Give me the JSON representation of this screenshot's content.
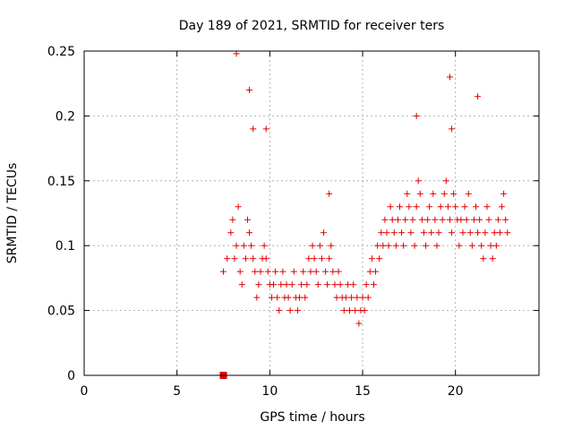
{
  "chart_data": {
    "type": "scatter",
    "title": "Day 189 of 2021, SRMTID for receiver ters",
    "xlabel": "GPS time / hours",
    "ylabel": "SRMTID / TECUs",
    "xlim": [
      0,
      24.5
    ],
    "ylim": [
      0,
      0.25
    ],
    "x_ticks": [
      "0",
      "5",
      "10",
      "15",
      "20"
    ],
    "x_tick_values": [
      0,
      5,
      10,
      15,
      20
    ],
    "y_ticks": [
      "0",
      "0.05",
      "0.1",
      "0.15",
      "0.2",
      "0.25"
    ],
    "y_tick_values": [
      0,
      0.05,
      0.1,
      0.15,
      0.2,
      0.25
    ],
    "grid": true,
    "marker": "plus",
    "color": "#e00000",
    "special_point": {
      "x": 7.5,
      "y": 0.0,
      "marker": "square"
    },
    "series": [
      {
        "x": [
          7.5,
          7.7,
          7.9,
          8.0,
          8.1,
          8.2,
          8.3,
          8.4,
          8.5,
          8.6,
          8.7,
          8.8,
          8.9,
          9.0,
          9.1,
          9.2,
          9.3,
          9.4,
          9.5,
          9.6,
          9.7,
          9.8,
          9.9,
          10.0,
          10.1,
          10.2,
          10.3,
          10.4,
          10.5,
          10.6,
          10.7,
          10.8,
          10.9,
          11.0,
          11.1,
          11.2,
          11.3,
          11.4,
          11.5,
          11.6,
          11.7,
          11.8,
          11.9,
          12.0,
          12.1,
          12.2,
          12.3,
          12.4,
          12.5,
          12.6,
          12.7,
          12.8,
          12.9,
          13.0,
          13.1,
          13.2,
          13.3,
          13.4,
          13.5,
          13.6,
          13.7,
          13.8,
          13.9,
          14.0,
          14.1,
          14.2,
          14.3,
          14.4,
          14.5,
          14.6,
          14.7,
          14.8,
          14.9,
          15.0,
          15.1,
          15.2,
          15.3,
          15.4,
          15.5,
          15.6,
          15.7,
          15.8,
          15.9,
          16.0,
          16.1,
          16.2,
          16.3,
          16.4,
          16.5,
          16.6,
          16.7,
          16.8,
          16.9,
          17.0,
          17.1,
          17.2,
          17.3,
          17.4,
          17.5,
          17.6,
          17.7,
          17.8,
          17.9,
          18.0,
          18.1,
          18.2,
          18.3,
          18.4,
          18.5,
          18.6,
          18.7,
          18.8,
          18.9,
          19.0,
          19.1,
          19.2,
          19.3,
          19.4,
          19.5,
          19.6,
          19.7,
          19.8,
          19.9,
          20.0,
          20.1,
          20.2,
          20.3,
          20.4,
          20.5,
          20.6,
          20.7,
          20.8,
          20.9,
          21.0,
          21.1,
          21.2,
          21.3,
          21.4,
          21.5,
          21.6,
          21.7,
          21.8,
          21.9,
          22.0,
          22.1,
          22.2,
          22.3,
          22.4,
          22.5,
          22.6,
          22.7,
          22.8,
          8.2,
          8.9,
          9.1,
          9.8,
          13.2,
          17.9,
          19.7,
          19.8,
          21.2
        ],
        "y": [
          0.08,
          0.09,
          0.11,
          0.12,
          0.09,
          0.1,
          0.13,
          0.08,
          0.07,
          0.1,
          0.09,
          0.12,
          0.11,
          0.1,
          0.09,
          0.08,
          0.06,
          0.07,
          0.08,
          0.09,
          0.1,
          0.09,
          0.08,
          0.07,
          0.06,
          0.07,
          0.08,
          0.06,
          0.05,
          0.07,
          0.08,
          0.06,
          0.07,
          0.06,
          0.05,
          0.07,
          0.08,
          0.06,
          0.05,
          0.06,
          0.07,
          0.08,
          0.06,
          0.07,
          0.09,
          0.08,
          0.1,
          0.09,
          0.08,
          0.07,
          0.1,
          0.09,
          0.11,
          0.08,
          0.07,
          0.09,
          0.1,
          0.08,
          0.07,
          0.06,
          0.08,
          0.07,
          0.06,
          0.05,
          0.06,
          0.07,
          0.05,
          0.06,
          0.07,
          0.05,
          0.06,
          0.04,
          0.05,
          0.06,
          0.05,
          0.07,
          0.06,
          0.08,
          0.09,
          0.07,
          0.08,
          0.1,
          0.09,
          0.11,
          0.1,
          0.12,
          0.11,
          0.1,
          0.13,
          0.12,
          0.11,
          0.1,
          0.12,
          0.13,
          0.11,
          0.1,
          0.12,
          0.14,
          0.13,
          0.11,
          0.12,
          0.1,
          0.13,
          0.15,
          0.14,
          0.12,
          0.11,
          0.1,
          0.12,
          0.13,
          0.11,
          0.14,
          0.12,
          0.1,
          0.11,
          0.13,
          0.12,
          0.14,
          0.15,
          0.13,
          0.12,
          0.11,
          0.14,
          0.13,
          0.12,
          0.1,
          0.12,
          0.11,
          0.13,
          0.12,
          0.14,
          0.11,
          0.1,
          0.12,
          0.13,
          0.11,
          0.12,
          0.1,
          0.09,
          0.11,
          0.13,
          0.12,
          0.1,
          0.09,
          0.11,
          0.1,
          0.12,
          0.11,
          0.13,
          0.14,
          0.12,
          0.11,
          0.248,
          0.22,
          0.19,
          0.19,
          0.14,
          0.2,
          0.23,
          0.19,
          0.215
        ]
      }
    ]
  }
}
